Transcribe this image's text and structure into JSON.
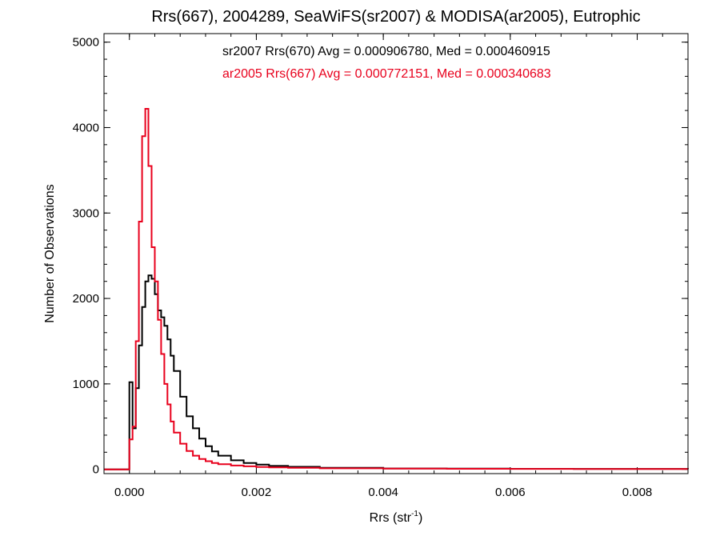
{
  "chart_data": {
    "type": "line",
    "title": "Rrs(667), 2004289, SeaWiFS(sr2007) & MODISA(ar2005), Eutrophic",
    "xlabel_main": "Rrs (str",
    "xlabel_sup": "-1",
    "xlabel_close": ")",
    "ylabel": "Number of Observations",
    "xlim": [
      -0.0004,
      0.0088
    ],
    "ylim": [
      -50,
      5100
    ],
    "xticks": [
      0.0,
      0.002,
      0.004,
      0.006,
      0.008
    ],
    "xtick_labels": [
      "0.000",
      "0.002",
      "0.004",
      "0.006",
      "0.008"
    ],
    "yticks": [
      0,
      1000,
      2000,
      3000,
      4000,
      5000
    ],
    "ytick_labels": [
      "0",
      "1000",
      "2000",
      "3000",
      "4000",
      "5000"
    ],
    "annotations": [
      {
        "text": "sr2007 Rrs(670) Avg = 0.000906780, Med = 0.000460915",
        "color": "#000000"
      },
      {
        "text": "ar2005 Rrs(667) Avg = 0.000772151, Med = 0.000340683",
        "color": "#e8001c"
      }
    ],
    "series": [
      {
        "color": "#000000",
        "x": [
          -0.0004,
          0.0,
          5e-05,
          0.0001,
          0.00015,
          0.0002,
          0.00025,
          0.0003,
          0.00035,
          0.0004,
          0.00045,
          0.0005,
          0.00055,
          0.0006,
          0.00065,
          0.0007,
          0.0008,
          0.0009,
          0.001,
          0.0011,
          0.0012,
          0.0013,
          0.0014,
          0.0016,
          0.0018,
          0.002,
          0.0022,
          0.0025,
          0.003,
          0.004,
          0.005,
          0.006,
          0.007,
          0.0088
        ],
        "y": [
          0,
          1020,
          480,
          950,
          1450,
          1900,
          2200,
          2270,
          2230,
          2050,
          1860,
          1780,
          1680,
          1520,
          1330,
          1150,
          850,
          620,
          480,
          360,
          270,
          210,
          160,
          105,
          75,
          55,
          40,
          30,
          18,
          10,
          8,
          6,
          5,
          4
        ]
      },
      {
        "color": "#e8001c",
        "x": [
          -0.0004,
          0.0,
          5e-05,
          0.0001,
          0.00015,
          0.0002,
          0.00025,
          0.0003,
          0.00035,
          0.0004,
          0.00045,
          0.0005,
          0.00055,
          0.0006,
          0.00065,
          0.0007,
          0.0008,
          0.0009,
          0.001,
          0.0011,
          0.0012,
          0.0013,
          0.0014,
          0.0016,
          0.0018,
          0.002,
          0.0022,
          0.0025,
          0.003,
          0.004,
          0.005,
          0.006,
          0.007,
          0.0088
        ],
        "y": [
          0,
          350,
          500,
          1500,
          2900,
          3900,
          4220,
          3550,
          2600,
          2200,
          1750,
          1350,
          1000,
          760,
          560,
          430,
          300,
          215,
          160,
          120,
          95,
          75,
          60,
          45,
          35,
          28,
          22,
          17,
          12,
          8,
          6,
          5,
          4,
          3
        ]
      }
    ]
  }
}
